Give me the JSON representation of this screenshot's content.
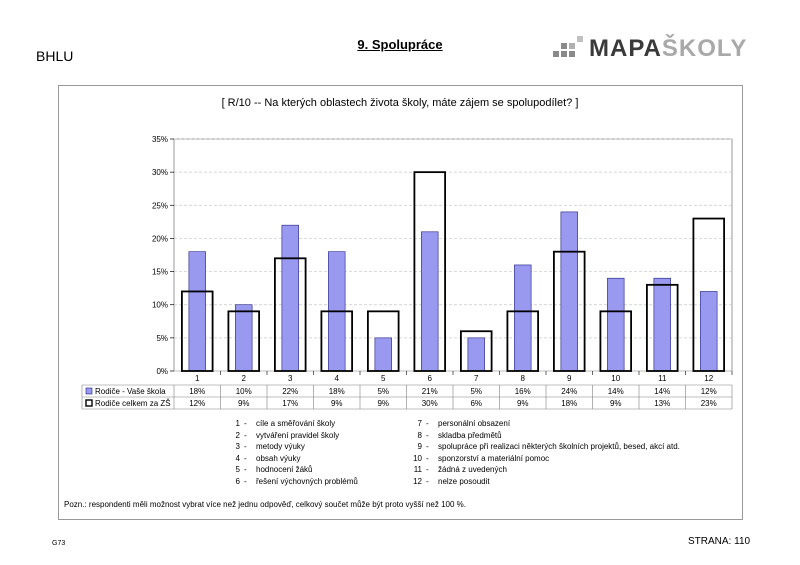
{
  "header": {
    "school_code": "BHLU",
    "section_title": "9. Spolupráce",
    "logo": {
      "part1": "MAPA",
      "part2": "ŠKOLY"
    }
  },
  "chart_data": {
    "type": "bar",
    "title": "[ R/10 --  Na kterých oblastech života školy, máte zájem se spolupodílet?  ]",
    "categories": [
      "1",
      "2",
      "3",
      "4",
      "5",
      "6",
      "7",
      "8",
      "9",
      "10",
      "11",
      "12"
    ],
    "ylim": [
      0,
      35
    ],
    "yticks": [
      "0%",
      "5%",
      "10%",
      "15%",
      "20%",
      "25%",
      "30%",
      "35%"
    ],
    "grid": true,
    "series": [
      {
        "name": "Rodiče - Vaše škola",
        "values": [
          18,
          10,
          22,
          18,
          5,
          21,
          5,
          16,
          24,
          14,
          14,
          12
        ],
        "labels": [
          "18%",
          "10%",
          "22%",
          "18%",
          "5%",
          "21%",
          "5%",
          "16%",
          "24%",
          "14%",
          "14%",
          "12%"
        ],
        "color": "#9999f0"
      },
      {
        "name": "Rodiče celkem za ZŠ",
        "values": [
          12,
          9,
          17,
          9,
          9,
          30,
          6,
          9,
          18,
          9,
          13,
          23
        ],
        "labels": [
          "12%",
          "9%",
          "17%",
          "9%",
          "9%",
          "30%",
          "6%",
          "9%",
          "18%",
          "9%",
          "13%",
          "23%"
        ],
        "color": "#000000"
      }
    ]
  },
  "legend_codes": [
    {
      "num": "1",
      "text": "cíle a směřování školy"
    },
    {
      "num": "2",
      "text": "vytváření pravidel školy"
    },
    {
      "num": "3",
      "text": "metody výuky"
    },
    {
      "num": "4",
      "text": "obsah výuky"
    },
    {
      "num": "5",
      "text": "hodnocení žáků"
    },
    {
      "num": "6",
      "text": "řešení výchovných problémů"
    },
    {
      "num": "7",
      "text": "personální obsazení"
    },
    {
      "num": "8",
      "text": "skladba předmětů"
    },
    {
      "num": "9",
      "text": "spolupráce při realizaci některých školních projektů, besed, akcí atd."
    },
    {
      "num": "10",
      "text": "sponzorství a materiální pomoc"
    },
    {
      "num": "11",
      "text": "žádná z uvedených"
    },
    {
      "num": "12",
      "text": "nelze posoudit"
    }
  ],
  "note": "Pozn.: respondenti měli možnost vybrat více než jednu odpověď, celkový součet může být proto vyšší než 100 %.",
  "footer": {
    "code": "G73",
    "page": "STRANA: 110"
  }
}
